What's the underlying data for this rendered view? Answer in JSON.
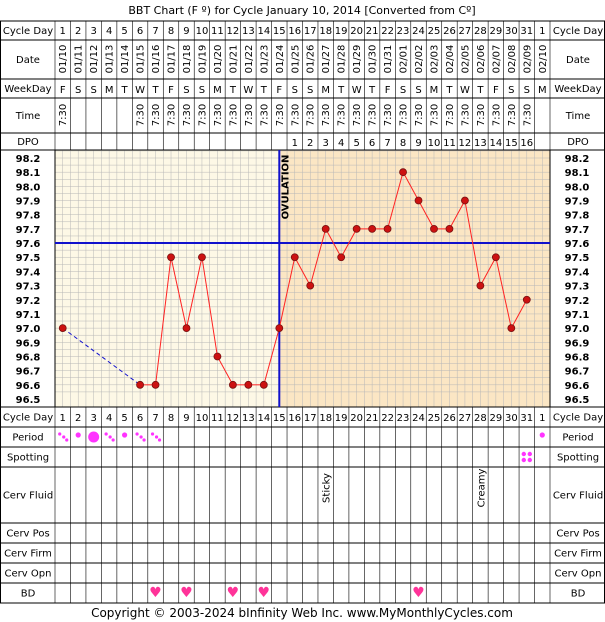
{
  "title": "BBT Chart (F º) for Cycle January 10, 2014  [Converted from Cº]",
  "copyright": "Copyright © 2003-2024 bInfinity Web Inc.    www.MyMonthlyCycles.com",
  "row_labels": {
    "cycle_day": "Cycle Day",
    "date": "Date",
    "weekday": "WeekDay",
    "time": "Time",
    "dpo": "DPO",
    "period": "Period",
    "spotting": "Spotting",
    "cerv_fluid": "Cerv Fluid",
    "cerv_pos": "Cerv Pos",
    "cerv_firm": "Cerv Firm",
    "cerv_opn": "Cerv Opn",
    "bd": "BD"
  },
  "colors": {
    "pre_ovulation_bg": "#fdf8e6",
    "post_ovulation_bg": "#fbe6c4",
    "grid": "#b7b7b7",
    "temp_line": "#ff2222",
    "point_fill": "#cc1111",
    "coverline": "#1111cc",
    "ovulation_line": "#1111cc",
    "period": "#ff33ff",
    "bd_heart": "#ff3399"
  },
  "chart_data": {
    "type": "line",
    "title": "BBT Chart (F º) for Cycle January 10, 2014  [Converted from Cº]",
    "cycle_days": [
      "1",
      "2",
      "3",
      "4",
      "5",
      "6",
      "7",
      "8",
      "9",
      "10",
      "11",
      "12",
      "13",
      "14",
      "15",
      "16",
      "17",
      "18",
      "19",
      "20",
      "21",
      "22",
      "23",
      "24",
      "25",
      "26",
      "27",
      "28",
      "29",
      "30",
      "31",
      "1"
    ],
    "dates": [
      "01/10",
      "01/11",
      "01/12",
      "01/13",
      "01/14",
      "01/15",
      "01/16",
      "01/17",
      "01/18",
      "01/19",
      "01/20",
      "01/21",
      "01/22",
      "01/23",
      "01/24",
      "01/25",
      "01/26",
      "01/27",
      "01/28",
      "01/29",
      "01/30",
      "01/31",
      "02/01",
      "02/02",
      "02/03",
      "02/04",
      "02/05",
      "02/06",
      "02/07",
      "02/08",
      "02/09",
      "02/10"
    ],
    "weekdays": [
      "F",
      "S",
      "S",
      "M",
      "T",
      "W",
      "T",
      "F",
      "S",
      "S",
      "M",
      "T",
      "W",
      "T",
      "F",
      "S",
      "S",
      "M",
      "T",
      "W",
      "T",
      "F",
      "S",
      "S",
      "M",
      "T",
      "W",
      "T",
      "F",
      "S",
      "S",
      "M"
    ],
    "times": [
      "7:30",
      "",
      "",
      "",
      "",
      "7:30",
      "7:30",
      "7:30",
      "7:30",
      "7:30",
      "7:30",
      "7:30",
      "7:30",
      "7:30",
      "7:30",
      "7:30",
      "7:30",
      "7:30",
      "7:30",
      "7:30",
      "7:30",
      "7:30",
      "7:30",
      "7:30",
      "7:30",
      "7:30",
      "7:30",
      "7:30",
      "7:30",
      "7:30",
      "7:30",
      ""
    ],
    "dpo": [
      "",
      "",
      "",
      "",
      "",
      "",
      "",
      "",
      "",
      "",
      "",
      "",
      "",
      "",
      "",
      "1",
      "2",
      "3",
      "4",
      "5",
      "6",
      "7",
      "8",
      "9",
      "10",
      "11",
      "12",
      "13",
      "14",
      "15",
      "16",
      ""
    ],
    "temperatures": [
      97.0,
      null,
      null,
      null,
      null,
      96.6,
      96.6,
      97.5,
      97.0,
      97.5,
      96.8,
      96.6,
      96.6,
      96.6,
      97.0,
      97.5,
      97.3,
      97.7,
      97.5,
      97.7,
      97.7,
      97.7,
      98.1,
      97.9,
      97.7,
      97.7,
      97.9,
      97.3,
      97.5,
      97.0,
      97.2,
      null
    ],
    "y_ticks": [
      "98.2",
      "98.1",
      "98.0",
      "97.9",
      "97.8",
      "97.7",
      "97.6",
      "97.5",
      "97.4",
      "97.3",
      "97.2",
      "97.1",
      "97.0",
      "96.9",
      "96.8",
      "96.7",
      "96.6",
      "96.5"
    ],
    "ylim": [
      96.5,
      98.2
    ],
    "coverline": 97.6,
    "ovulation_day_index": 14,
    "ovulation_label": "OVULATION",
    "period": [
      {
        "day_index": 0,
        "type": "spotting-dots"
      },
      {
        "day_index": 1,
        "type": "light"
      },
      {
        "day_index": 2,
        "type": "heavy"
      },
      {
        "day_index": 3,
        "type": "spotting-dots"
      },
      {
        "day_index": 4,
        "type": "light"
      },
      {
        "day_index": 5,
        "type": "spotting-dots"
      },
      {
        "day_index": 6,
        "type": "spotting-dots"
      },
      {
        "day_index": 31,
        "type": "light"
      }
    ],
    "spotting_days": [
      30
    ],
    "cerv_fluid": [
      {
        "day_index": 17,
        "label": "Sticky"
      },
      {
        "day_index": 27,
        "label": "Creamy"
      }
    ],
    "bd_days": [
      6,
      8,
      11,
      13,
      23
    ]
  }
}
